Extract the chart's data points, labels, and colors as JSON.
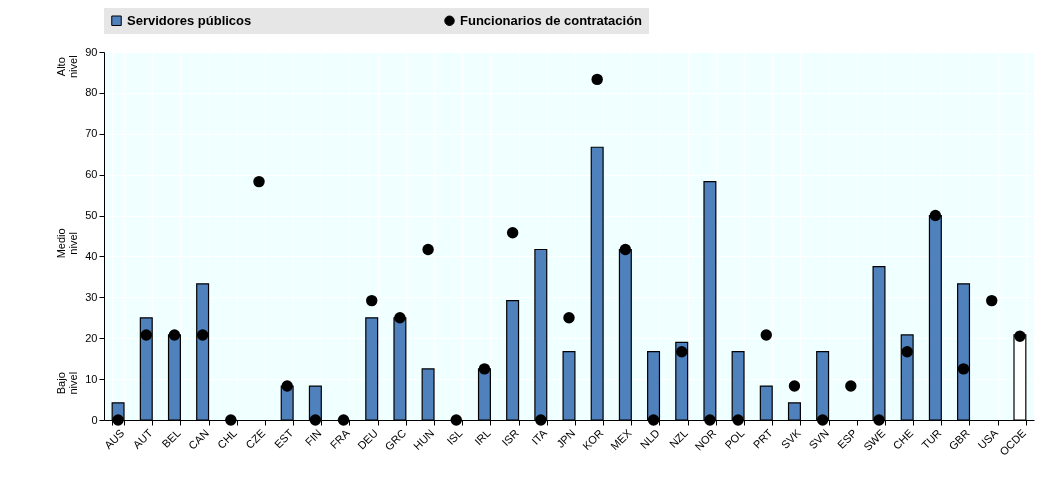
{
  "chart_data": {
    "type": "bar",
    "categories": [
      "AUS",
      "AUT",
      "BEL",
      "CAN",
      "CHL",
      "CZE",
      "EST",
      "FIN",
      "FRA",
      "DEU",
      "GRC",
      "HUN",
      "ISL",
      "IRL",
      "ISR",
      "ITA",
      "JPN",
      "KOR",
      "MEX",
      "NLD",
      "NZL",
      "NOR",
      "POL",
      "PRT",
      "SVK",
      "SVN",
      "ESP",
      "SWE",
      "CHE",
      "TUR",
      "GBR",
      "USA",
      "OCDE"
    ],
    "series": [
      {
        "name": "Servidores públicos",
        "color": "#4f81bd",
        "colors": [
          "#4f81bd",
          "#4f81bd",
          "#4f81bd",
          "#4f81bd",
          "#4f81bd",
          "#4f81bd",
          "#4f81bd",
          "#4f81bd",
          "#4f81bd",
          "#4f81bd",
          "#4f81bd",
          "#4f81bd",
          "#4f81bd",
          "#4f81bd",
          "#4f81bd",
          "#4f81bd",
          "#4f81bd",
          "#4f81bd",
          "#4f81bd",
          "#4f81bd",
          "#4f81bd",
          "#4f81bd",
          "#4f81bd",
          "#4f81bd",
          "#4f81bd",
          "#4f81bd",
          "#4f81bd",
          "#4f81bd",
          "#4f81bd",
          "#4f81bd",
          "#4f81bd",
          "#4f81bd",
          "#ffffff"
        ],
        "values": [
          4.2,
          25,
          20.8,
          33.3,
          0,
          null,
          8.3,
          8.3,
          0,
          25,
          25,
          12.5,
          0,
          12.5,
          29.2,
          41.7,
          16.7,
          66.7,
          41.7,
          16.7,
          19,
          58.3,
          16.7,
          8.3,
          4.2,
          16.7,
          null,
          37.5,
          20.8,
          50,
          33.3,
          null,
          20.8
        ]
      },
      {
        "name": "Funcionarios de contratación",
        "type": "scatter",
        "color": "#000000",
        "values": [
          0,
          20.8,
          20.8,
          20.8,
          0,
          58.3,
          8.3,
          0,
          0,
          29.2,
          25,
          41.7,
          0,
          12.5,
          45.8,
          0,
          25,
          83.3,
          41.7,
          0,
          16.7,
          0,
          0,
          20.8,
          8.3,
          0,
          8.3,
          0,
          16.7,
          50,
          12.5,
          29.2,
          20.5
        ]
      }
    ],
    "ylim": [
      0,
      90
    ],
    "yticks": [
      0,
      10,
      20,
      30,
      40,
      50,
      60,
      70,
      80,
      90
    ],
    "grid": true,
    "legend": "top",
    "marker": "circle",
    "annotations": [
      "Alto nivel",
      "Medio nivel",
      "Bajo nivel"
    ]
  }
}
